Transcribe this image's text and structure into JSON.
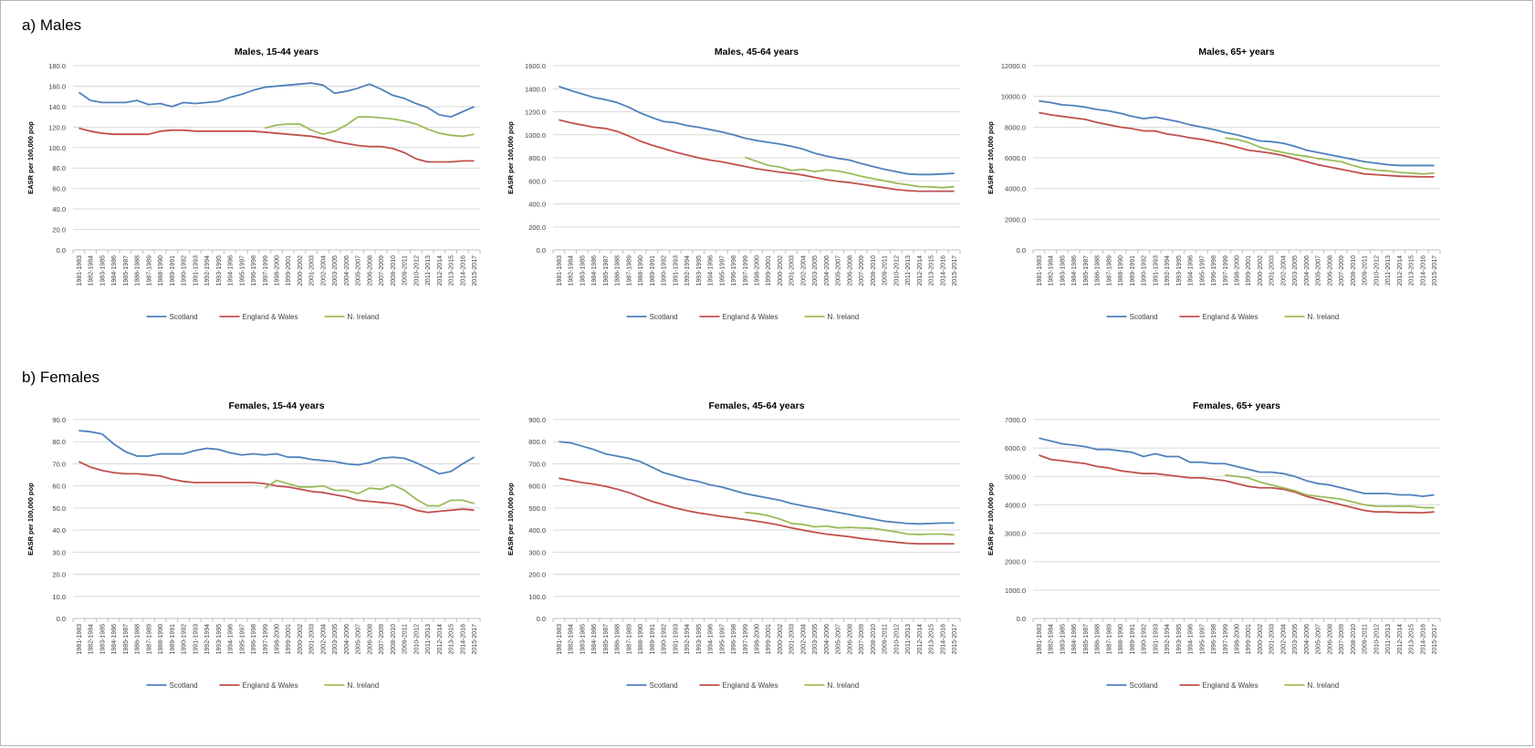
{
  "sections": {
    "males_label": "a) Males",
    "females_label": "b) Females"
  },
  "colors": {
    "Scotland": "#4f81bd",
    "England & Wales": "#c0504d",
    "N. Ireland": "#9bbb59",
    "grid": "#d9d9d9",
    "axis_text": "#404040"
  },
  "chart_data": [
    {
      "type": "line",
      "title": "Males, 15-44 years",
      "ylabel": "EASR per 100,000 pop",
      "ylim": [
        0,
        180
      ],
      "y_ticks": [
        "0.0",
        "20.0",
        "40.0",
        "60.0",
        "80.0",
        "100.0",
        "120.0",
        "140.0",
        "160.0",
        "180.0"
      ],
      "x": [
        "1981-1983",
        "1982-1984",
        "1983-1985",
        "1984-1986",
        "1985-1987",
        "1986-1988",
        "1987-1989",
        "1988-1990",
        "1989-1991",
        "1990-1992",
        "1991-1993",
        "1992-1994",
        "1993-1995",
        "1994-1996",
        "1995-1997",
        "1996-1998",
        "1997-1999",
        "1998-2000",
        "1999-2001",
        "2000-2002",
        "2001-2003",
        "2002-2004",
        "2003-2005",
        "2004-2006",
        "2005-2007",
        "2006-2008",
        "2007-2009",
        "2008-2010",
        "2009-2011",
        "2010-2012",
        "2011-2013",
        "2012-2014",
        "2013-2015",
        "2014-2016",
        "2015-2017"
      ],
      "legend": "bottom",
      "series": [
        {
          "name": "Scotland",
          "values": [
            154,
            146,
            144,
            144,
            144,
            146,
            142,
            143,
            140,
            144,
            143,
            144,
            145,
            149,
            152,
            156,
            159,
            160,
            161,
            162,
            163,
            161,
            153,
            155,
            158,
            162,
            157,
            151,
            148,
            143,
            139,
            132,
            130,
            135,
            140
          ]
        },
        {
          "name": "England & Wales",
          "values": [
            119,
            116,
            114,
            113,
            113,
            113,
            113,
            116,
            117,
            117,
            116,
            116,
            116,
            116,
            116,
            116,
            115,
            114,
            113,
            112,
            111,
            109,
            106,
            104,
            102,
            101,
            101,
            99,
            95,
            89,
            86,
            86,
            86,
            87,
            87
          ]
        },
        {
          "name": "N. Ireland",
          "values": [
            null,
            null,
            null,
            null,
            null,
            null,
            null,
            null,
            null,
            null,
            null,
            null,
            null,
            null,
            null,
            null,
            119,
            122,
            123,
            123,
            117,
            113,
            116,
            122,
            130,
            130,
            129,
            128,
            126,
            123,
            118,
            114,
            112,
            111,
            113
          ]
        }
      ]
    },
    {
      "type": "line",
      "title": "Males, 45-64 years",
      "ylabel": "EASR per 100,000 pop",
      "ylim": [
        0,
        1600
      ],
      "y_ticks": [
        "0.0",
        "200.0",
        "400.0",
        "600.0",
        "800.0",
        "1000.0",
        "1200.0",
        "1400.0",
        "1600.0"
      ],
      "x": [
        "1981-1983",
        "1982-1984",
        "1983-1985",
        "1984-1986",
        "1985-1987",
        "1986-1988",
        "1987-1989",
        "1988-1990",
        "1989-1991",
        "1990-1992",
        "1991-1993",
        "1992-1994",
        "1993-1995",
        "1994-1996",
        "1995-1997",
        "1996-1998",
        "1997-1999",
        "1998-2000",
        "1999-2001",
        "2000-2002",
        "2001-2003",
        "2002-2004",
        "2003-2005",
        "2004-2006",
        "2005-2007",
        "2006-2008",
        "2007-2009",
        "2008-2010",
        "2009-2011",
        "2010-2012",
        "2011-2013",
        "2012-2014",
        "2013-2015",
        "2014-2016",
        "2015-2017"
      ],
      "legend": "bottom",
      "series": [
        {
          "name": "Scotland",
          "values": [
            1420,
            1385,
            1355,
            1325,
            1305,
            1280,
            1240,
            1190,
            1150,
            1115,
            1105,
            1080,
            1065,
            1045,
            1025,
            1000,
            970,
            950,
            935,
            920,
            900,
            875,
            840,
            815,
            795,
            780,
            750,
            725,
            700,
            680,
            660,
            655,
            655,
            660,
            665
          ]
        },
        {
          "name": "England & Wales",
          "values": [
            1130,
            1105,
            1085,
            1065,
            1055,
            1030,
            990,
            945,
            910,
            880,
            850,
            825,
            800,
            780,
            765,
            745,
            725,
            705,
            690,
            675,
            665,
            650,
            630,
            610,
            595,
            585,
            570,
            555,
            540,
            525,
            515,
            510,
            510,
            510,
            510
          ]
        },
        {
          "name": "N. Ireland",
          "values": [
            null,
            null,
            null,
            null,
            null,
            null,
            null,
            null,
            null,
            null,
            null,
            null,
            null,
            null,
            null,
            null,
            805,
            770,
            735,
            720,
            690,
            700,
            680,
            695,
            685,
            665,
            640,
            620,
            600,
            580,
            565,
            550,
            548,
            540,
            550
          ]
        }
      ]
    },
    {
      "type": "line",
      "title": "Males, 65+ years",
      "ylabel": "EASR per 100,000 pop",
      "ylim": [
        0,
        12000
      ],
      "y_ticks": [
        "0.0",
        "2000.0",
        "4000.0",
        "6000.0",
        "8000.0",
        "10000.0",
        "12000.0"
      ],
      "x": [
        "1981-1983",
        "1982-1984",
        "1983-1985",
        "1984-1986",
        "1985-1987",
        "1986-1988",
        "1987-1989",
        "1988-1990",
        "1989-1991",
        "1990-1992",
        "1991-1993",
        "1992-1994",
        "1993-1995",
        "1994-1996",
        "1995-1997",
        "1996-1998",
        "1997-1999",
        "1998-2000",
        "1999-2001",
        "2000-2002",
        "2001-2003",
        "2002-2004",
        "2003-2005",
        "2004-2006",
        "2005-2007",
        "2006-2008",
        "2007-2009",
        "2008-2010",
        "2009-2011",
        "2010-2012",
        "2011-2013",
        "2012-2014",
        "2013-2015",
        "2014-2016",
        "2015-2017"
      ],
      "legend": "bottom",
      "series": [
        {
          "name": "Scotland",
          "values": [
            9700,
            9600,
            9450,
            9400,
            9300,
            9150,
            9050,
            8900,
            8700,
            8550,
            8650,
            8500,
            8350,
            8150,
            8000,
            7850,
            7650,
            7500,
            7300,
            7100,
            7050,
            6950,
            6750,
            6500,
            6350,
            6200,
            6050,
            5900,
            5750,
            5650,
            5550,
            5500,
            5500,
            5500,
            5500
          ]
        },
        {
          "name": "England & Wales",
          "values": [
            8950,
            8800,
            8700,
            8600,
            8500,
            8300,
            8150,
            8000,
            7900,
            7750,
            7750,
            7550,
            7450,
            7300,
            7200,
            7050,
            6900,
            6700,
            6500,
            6400,
            6300,
            6150,
            5950,
            5750,
            5550,
            5400,
            5250,
            5100,
            4950,
            4900,
            4850,
            4800,
            4780,
            4760,
            4760
          ]
        },
        {
          "name": "N. Ireland",
          "values": [
            null,
            null,
            null,
            null,
            null,
            null,
            null,
            null,
            null,
            null,
            null,
            null,
            null,
            null,
            null,
            null,
            7300,
            7200,
            7000,
            6700,
            6500,
            6350,
            6200,
            6100,
            5950,
            5850,
            5750,
            5500,
            5300,
            5200,
            5150,
            5050,
            5000,
            4950,
            5000
          ]
        }
      ]
    },
    {
      "type": "line",
      "title": "Females, 15-44 years",
      "ylabel": "EASR per 100,000 pop",
      "ylim": [
        0,
        90
      ],
      "y_ticks": [
        "0.0",
        "10.0",
        "20.0",
        "30.0",
        "40.0",
        "50.0",
        "60.0",
        "70.0",
        "80.0",
        "90.0"
      ],
      "x": [
        "1981-1983",
        "1982-1984",
        "1983-1985",
        "1984-1986",
        "1985-1987",
        "1986-1988",
        "1987-1989",
        "1988-1990",
        "1989-1991",
        "1990-1992",
        "1991-1993",
        "1992-1994",
        "1993-1995",
        "1994-1996",
        "1995-1997",
        "1996-1998",
        "1997-1999",
        "1998-2000",
        "1999-2001",
        "2000-2002",
        "2001-2003",
        "2002-2004",
        "2003-2005",
        "2004-2006",
        "2005-2007",
        "2006-2008",
        "2007-2009",
        "2008-2010",
        "2009-2011",
        "2010-2012",
        "2011-2013",
        "2012-2014",
        "2013-2015",
        "2014-2016",
        "2015-2017"
      ],
      "legend": "bottom",
      "series": [
        {
          "name": "Scotland",
          "values": [
            85,
            84.5,
            83.5,
            79,
            75.5,
            73.5,
            73.5,
            74.5,
            74.5,
            74.5,
            76,
            77,
            76.5,
            75,
            74,
            74.5,
            74,
            74.5,
            73,
            73,
            72,
            71.5,
            71,
            70,
            69.5,
            70.5,
            72.5,
            73,
            72.5,
            70.5,
            68,
            65.5,
            66.5,
            70,
            73
          ]
        },
        {
          "name": "England & Wales",
          "values": [
            71,
            68.5,
            67,
            66,
            65.5,
            65.5,
            65,
            64.5,
            63,
            62,
            61.5,
            61.5,
            61.5,
            61.5,
            61.5,
            61.5,
            61,
            60,
            59.5,
            58.5,
            57.5,
            57,
            56,
            55,
            53.5,
            53,
            52.5,
            52,
            51,
            49,
            48,
            48.5,
            49,
            49.5,
            49
          ]
        },
        {
          "name": "N. Ireland",
          "values": [
            null,
            null,
            null,
            null,
            null,
            null,
            null,
            null,
            null,
            null,
            null,
            null,
            null,
            null,
            null,
            null,
            59,
            62.5,
            61,
            59.5,
            59.5,
            60,
            58,
            58,
            56.5,
            59,
            58.5,
            60.5,
            58,
            54,
            51,
            51,
            53.5,
            53.5,
            52
          ]
        }
      ]
    },
    {
      "type": "line",
      "title": "Females, 45-64 years",
      "ylabel": "EASR per 100,000 pop",
      "ylim": [
        0,
        900
      ],
      "y_ticks": [
        "0.0",
        "100.0",
        "200.0",
        "300.0",
        "400.0",
        "500.0",
        "600.0",
        "700.0",
        "800.0",
        "900.0"
      ],
      "x": [
        "1981-1983",
        "1982-1984",
        "1983-1985",
        "1984-1986",
        "1985-1987",
        "1986-1988",
        "1987-1989",
        "1988-1990",
        "1989-1991",
        "1990-1992",
        "1991-1993",
        "1992-1994",
        "1993-1995",
        "1994-1996",
        "1995-1997",
        "1996-1998",
        "1997-1999",
        "1998-2000",
        "1999-2001",
        "2000-2002",
        "2001-2003",
        "2002-2004",
        "2003-2005",
        "2004-2006",
        "2005-2007",
        "2006-2008",
        "2007-2009",
        "2008-2010",
        "2009-2011",
        "2010-2012",
        "2011-2013",
        "2012-2014",
        "2013-2015",
        "2014-2016",
        "2015-2017"
      ],
      "legend": "bottom",
      "series": [
        {
          "name": "Scotland",
          "values": [
            800,
            795,
            780,
            765,
            745,
            735,
            725,
            710,
            685,
            660,
            645,
            630,
            620,
            605,
            595,
            580,
            565,
            555,
            545,
            535,
            520,
            510,
            500,
            490,
            480,
            470,
            460,
            450,
            440,
            435,
            430,
            428,
            430,
            432,
            432
          ]
        },
        {
          "name": "England & Wales",
          "values": [
            635,
            625,
            615,
            608,
            598,
            585,
            570,
            550,
            530,
            515,
            500,
            488,
            478,
            470,
            462,
            455,
            448,
            440,
            432,
            422,
            410,
            400,
            390,
            382,
            376,
            370,
            362,
            356,
            350,
            345,
            340,
            338,
            338,
            338,
            338
          ]
        },
        {
          "name": "N. Ireland",
          "values": [
            null,
            null,
            null,
            null,
            null,
            null,
            null,
            null,
            null,
            null,
            null,
            null,
            null,
            null,
            null,
            null,
            480,
            475,
            465,
            450,
            430,
            425,
            415,
            418,
            410,
            412,
            410,
            408,
            400,
            392,
            382,
            380,
            382,
            382,
            378
          ]
        }
      ]
    },
    {
      "type": "line",
      "title": "Females, 65+ years",
      "ylabel": "EASR per 100,000 pop",
      "ylim": [
        0,
        7000
      ],
      "y_ticks": [
        "0.0",
        "1000.0",
        "2000.0",
        "3000.0",
        "4000.0",
        "5000.0",
        "6000.0",
        "7000.0"
      ],
      "x": [
        "1981-1983",
        "1982-1984",
        "1983-1985",
        "1984-1986",
        "1985-1987",
        "1986-1988",
        "1987-1989",
        "1988-1990",
        "1989-1991",
        "1990-1992",
        "1991-1993",
        "1992-1994",
        "1993-1995",
        "1994-1996",
        "1995-1997",
        "1996-1998",
        "1997-1999",
        "1998-2000",
        "1999-2001",
        "2000-2002",
        "2001-2003",
        "2002-2004",
        "2003-2005",
        "2004-2006",
        "2005-2007",
        "2006-2008",
        "2007-2009",
        "2008-2010",
        "2009-2011",
        "2010-2012",
        "2011-2013",
        "2012-2014",
        "2013-2015",
        "2014-2016",
        "2015-2017"
      ],
      "legend": "bottom",
      "series": [
        {
          "name": "Scotland",
          "values": [
            6350,
            6250,
            6150,
            6100,
            6050,
            5950,
            5950,
            5900,
            5850,
            5700,
            5800,
            5700,
            5700,
            5500,
            5500,
            5450,
            5450,
            5350,
            5250,
            5150,
            5150,
            5100,
            5000,
            4850,
            4750,
            4700,
            4600,
            4500,
            4400,
            4400,
            4400,
            4350,
            4350,
            4300,
            4350
          ]
        },
        {
          "name": "England & Wales",
          "values": [
            5750,
            5600,
            5550,
            5500,
            5450,
            5350,
            5300,
            5200,
            5150,
            5100,
            5100,
            5050,
            5000,
            4950,
            4950,
            4900,
            4850,
            4750,
            4650,
            4600,
            4600,
            4550,
            4450,
            4300,
            4200,
            4100,
            4000,
            3900,
            3800,
            3750,
            3750,
            3730,
            3730,
            3720,
            3750
          ]
        },
        {
          "name": "N. Ireland",
          "values": [
            null,
            null,
            null,
            null,
            null,
            null,
            null,
            null,
            null,
            null,
            null,
            null,
            null,
            null,
            null,
            null,
            5050,
            5000,
            4950,
            4800,
            4700,
            4600,
            4500,
            4350,
            4300,
            4250,
            4200,
            4100,
            4000,
            3950,
            3950,
            3950,
            3950,
            3900,
            3900
          ]
        }
      ]
    }
  ]
}
